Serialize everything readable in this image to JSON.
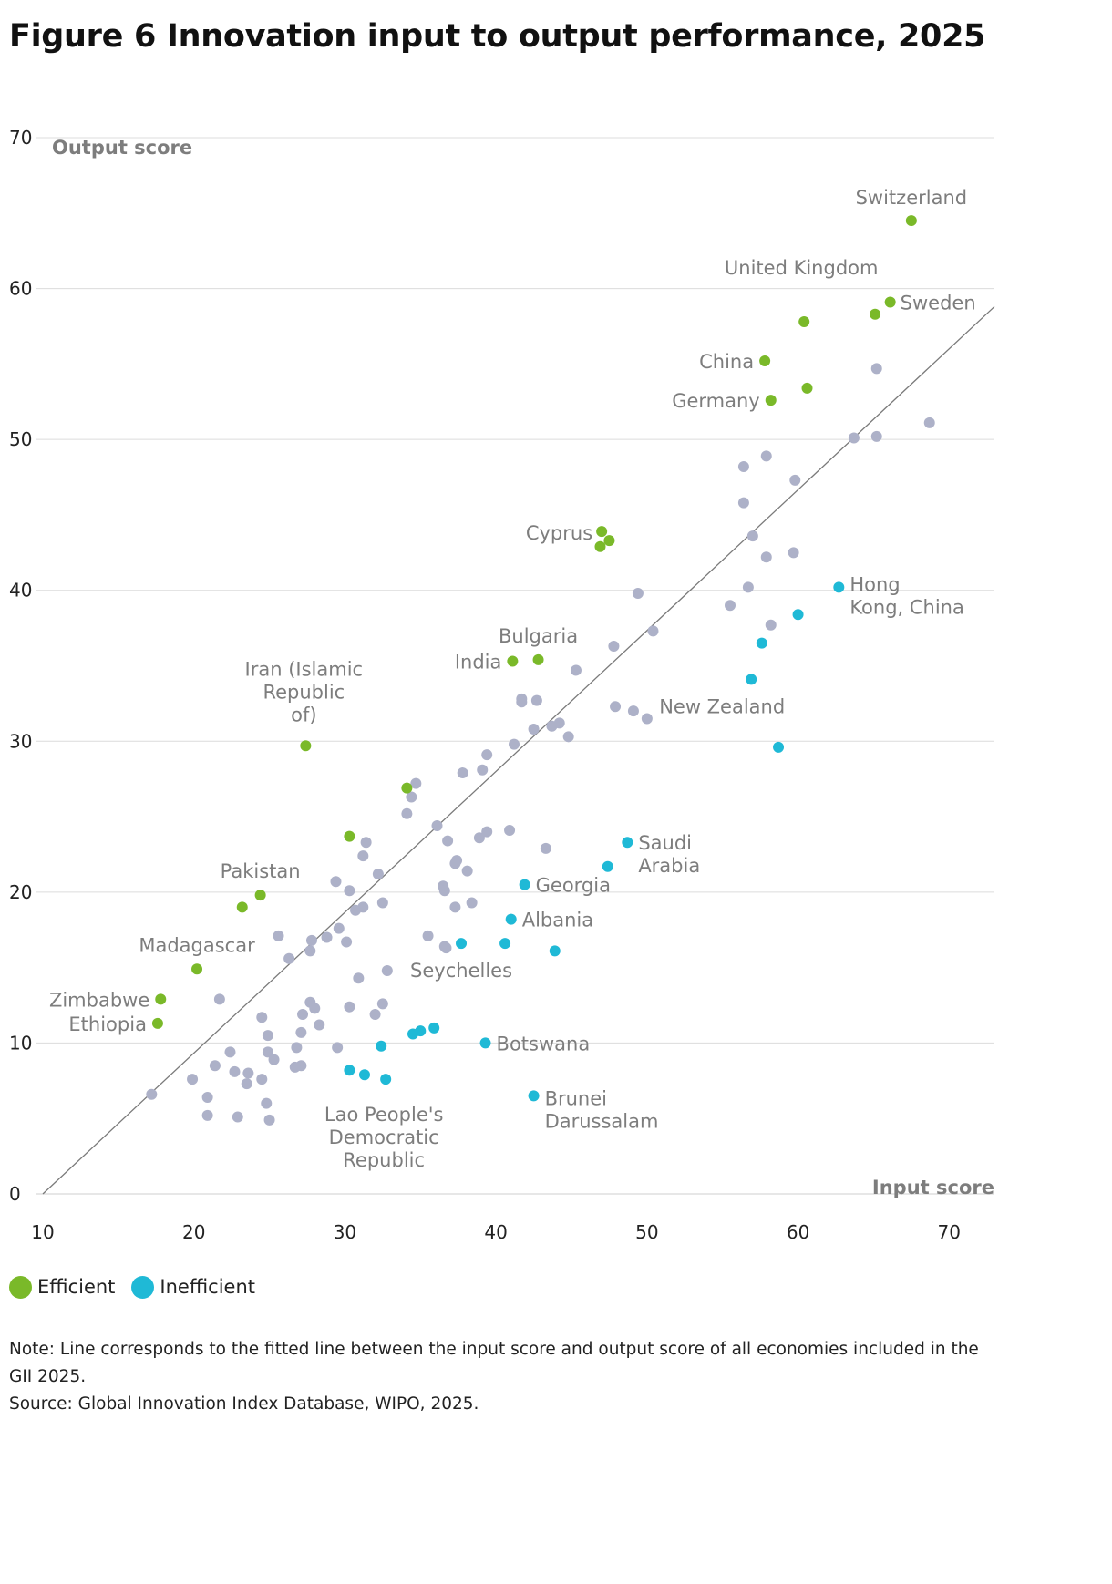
{
  "title": "Figure 6 Innovation input to output performance, 2025",
  "colors": {
    "efficient": "#7ab929",
    "inefficient": "#1fb9d6",
    "other": "#adb1c8",
    "fit_line": "#7a7a7a",
    "grid": "#dcdcdc"
  },
  "legend": [
    {
      "label": "Efficient",
      "color": "#7ab929"
    },
    {
      "label": "Inefficient",
      "color": "#1fb9d6"
    }
  ],
  "notes": {
    "note": "Note: Line corresponds to the fitted line between the input score and output score of all economies included in the GII 2025.",
    "source": "Source: Global Innovation Index Database, WIPO, 2025."
  },
  "chart_data": {
    "type": "scatter",
    "xlabel": "Input score",
    "ylabel": "Output score",
    "xlim": [
      10,
      73
    ],
    "ylim": [
      0,
      70
    ],
    "x_ticks": [
      "10",
      "20",
      "30",
      "40",
      "50",
      "60",
      "70"
    ],
    "y_ticks": [
      "0",
      "10",
      "20",
      "30",
      "40",
      "50",
      "60",
      "70"
    ],
    "grid": "horizontal",
    "legend_position": "bottom-left",
    "fitted_line": {
      "x": [
        10,
        73
      ],
      "y": [
        0,
        58.8
      ]
    },
    "series": [
      {
        "name": "Efficient",
        "color": "#7ab929",
        "points": [
          {
            "x": 67.5,
            "y": 64.5,
            "label": "Switzerland"
          },
          {
            "x": 66.1,
            "y": 59.1,
            "label": "Sweden"
          },
          {
            "x": 65.1,
            "y": 58.3
          },
          {
            "x": 60.4,
            "y": 57.8,
            "label": "United Kingdom"
          },
          {
            "x": 57.8,
            "y": 55.2,
            "label": "China"
          },
          {
            "x": 60.6,
            "y": 53.4
          },
          {
            "x": 58.2,
            "y": 52.6,
            "label": "Germany"
          },
          {
            "x": 47.0,
            "y": 43.9,
            "label": "Cyprus"
          },
          {
            "x": 47.5,
            "y": 43.3
          },
          {
            "x": 46.9,
            "y": 42.9
          },
          {
            "x": 42.8,
            "y": 35.4,
            "label": "Bulgaria"
          },
          {
            "x": 41.1,
            "y": 35.3,
            "label": "India"
          },
          {
            "x": 27.4,
            "y": 29.7,
            "label": "Iran (Islamic Republic of)"
          },
          {
            "x": 34.1,
            "y": 26.9
          },
          {
            "x": 30.3,
            "y": 23.7
          },
          {
            "x": 24.4,
            "y": 19.8,
            "label": "Pakistan"
          },
          {
            "x": 23.2,
            "y": 19.0
          },
          {
            "x": 20.2,
            "y": 14.9,
            "label": "Madagascar"
          },
          {
            "x": 17.8,
            "y": 12.9,
            "label": "Zimbabwe"
          },
          {
            "x": 17.6,
            "y": 11.3,
            "label": "Ethiopia"
          }
        ]
      },
      {
        "name": "Inefficient",
        "color": "#1fb9d6",
        "points": [
          {
            "x": 62.7,
            "y": 40.2,
            "label": "Hong Kong, China"
          },
          {
            "x": 60.0,
            "y": 38.4
          },
          {
            "x": 57.6,
            "y": 36.5
          },
          {
            "x": 56.9,
            "y": 34.1,
            "label": "New Zealand"
          },
          {
            "x": 58.7,
            "y": 29.6
          },
          {
            "x": 48.7,
            "y": 23.3,
            "label": "Saudi Arabia"
          },
          {
            "x": 47.4,
            "y": 21.7
          },
          {
            "x": 41.9,
            "y": 20.5,
            "label": "Georgia"
          },
          {
            "x": 41.0,
            "y": 18.2,
            "label": "Albania"
          },
          {
            "x": 43.9,
            "y": 16.1
          },
          {
            "x": 40.6,
            "y": 16.6
          },
          {
            "x": 37.7,
            "y": 16.6,
            "label": "Seychelles"
          },
          {
            "x": 35.9,
            "y": 11.0
          },
          {
            "x": 35.0,
            "y": 10.8
          },
          {
            "x": 34.5,
            "y": 10.6
          },
          {
            "x": 39.3,
            "y": 10.0,
            "label": "Botswana"
          },
          {
            "x": 32.4,
            "y": 9.8
          },
          {
            "x": 30.3,
            "y": 8.2
          },
          {
            "x": 31.3,
            "y": 7.9
          },
          {
            "x": 32.7,
            "y": 7.6,
            "label": "Lao People's Democratic Republic"
          },
          {
            "x": 42.5,
            "y": 6.5,
            "label": "Brunei Darussalam"
          }
        ]
      },
      {
        "name": "",
        "color": "#adb1c8",
        "points": [
          {
            "x": 68.7,
            "y": 51.1
          },
          {
            "x": 65.2,
            "y": 54.7
          },
          {
            "x": 63.7,
            "y": 50.1
          },
          {
            "x": 65.2,
            "y": 50.2
          },
          {
            "x": 56.4,
            "y": 48.2
          },
          {
            "x": 57.9,
            "y": 48.9
          },
          {
            "x": 59.8,
            "y": 47.3
          },
          {
            "x": 56.4,
            "y": 45.8
          },
          {
            "x": 57.0,
            "y": 43.6
          },
          {
            "x": 57.9,
            "y": 42.2
          },
          {
            "x": 59.7,
            "y": 42.5
          },
          {
            "x": 56.7,
            "y": 40.2
          },
          {
            "x": 55.5,
            "y": 39.0
          },
          {
            "x": 58.2,
            "y": 37.7
          },
          {
            "x": 49.4,
            "y": 39.8
          },
          {
            "x": 50.4,
            "y": 37.3
          },
          {
            "x": 47.8,
            "y": 36.3
          },
          {
            "x": 45.3,
            "y": 34.7
          },
          {
            "x": 41.7,
            "y": 32.8
          },
          {
            "x": 41.7,
            "y": 32.6
          },
          {
            "x": 42.7,
            "y": 32.7
          },
          {
            "x": 47.9,
            "y": 32.3
          },
          {
            "x": 49.1,
            "y": 32.0
          },
          {
            "x": 50.0,
            "y": 31.5
          },
          {
            "x": 44.2,
            "y": 31.2
          },
          {
            "x": 43.7,
            "y": 31.0
          },
          {
            "x": 42.5,
            "y": 30.8
          },
          {
            "x": 44.8,
            "y": 30.3
          },
          {
            "x": 41.2,
            "y": 29.8
          },
          {
            "x": 39.4,
            "y": 29.1
          },
          {
            "x": 39.1,
            "y": 28.1
          },
          {
            "x": 37.8,
            "y": 27.9
          },
          {
            "x": 34.7,
            "y": 27.2
          },
          {
            "x": 34.4,
            "y": 26.3
          },
          {
            "x": 34.1,
            "y": 25.2
          },
          {
            "x": 36.1,
            "y": 24.4
          },
          {
            "x": 39.4,
            "y": 24.0
          },
          {
            "x": 40.9,
            "y": 24.1
          },
          {
            "x": 38.9,
            "y": 23.6
          },
          {
            "x": 36.8,
            "y": 23.4
          },
          {
            "x": 31.4,
            "y": 23.3
          },
          {
            "x": 43.3,
            "y": 22.9
          },
          {
            "x": 31.2,
            "y": 22.4
          },
          {
            "x": 37.4,
            "y": 22.1
          },
          {
            "x": 37.3,
            "y": 21.9
          },
          {
            "x": 38.1,
            "y": 21.4
          },
          {
            "x": 32.2,
            "y": 21.2
          },
          {
            "x": 29.4,
            "y": 20.7
          },
          {
            "x": 36.5,
            "y": 20.4
          },
          {
            "x": 36.6,
            "y": 20.1
          },
          {
            "x": 30.3,
            "y": 20.1
          },
          {
            "x": 38.4,
            "y": 19.3
          },
          {
            "x": 32.5,
            "y": 19.3
          },
          {
            "x": 37.3,
            "y": 19.0
          },
          {
            "x": 31.2,
            "y": 19.0
          },
          {
            "x": 30.7,
            "y": 18.8
          },
          {
            "x": 29.6,
            "y": 17.6
          },
          {
            "x": 25.6,
            "y": 17.1
          },
          {
            "x": 27.8,
            "y": 16.8
          },
          {
            "x": 28.8,
            "y": 17.0
          },
          {
            "x": 35.5,
            "y": 17.1
          },
          {
            "x": 30.1,
            "y": 16.7
          },
          {
            "x": 36.6,
            "y": 16.4
          },
          {
            "x": 36.7,
            "y": 16.3
          },
          {
            "x": 27.7,
            "y": 16.1
          },
          {
            "x": 26.3,
            "y": 15.6
          },
          {
            "x": 32.8,
            "y": 14.8
          },
          {
            "x": 30.9,
            "y": 14.3
          },
          {
            "x": 21.7,
            "y": 12.9
          },
          {
            "x": 27.7,
            "y": 12.7
          },
          {
            "x": 32.5,
            "y": 12.6
          },
          {
            "x": 28.0,
            "y": 12.3
          },
          {
            "x": 30.3,
            "y": 12.4
          },
          {
            "x": 27.2,
            "y": 11.9
          },
          {
            "x": 32.0,
            "y": 11.9
          },
          {
            "x": 24.5,
            "y": 11.7
          },
          {
            "x": 28.3,
            "y": 11.2
          },
          {
            "x": 27.1,
            "y": 10.7
          },
          {
            "x": 24.9,
            "y": 10.5
          },
          {
            "x": 29.5,
            "y": 9.7
          },
          {
            "x": 26.8,
            "y": 9.7
          },
          {
            "x": 22.4,
            "y": 9.4
          },
          {
            "x": 24.9,
            "y": 9.4
          },
          {
            "x": 25.3,
            "y": 8.9
          },
          {
            "x": 21.4,
            "y": 8.5
          },
          {
            "x": 27.1,
            "y": 8.5
          },
          {
            "x": 26.7,
            "y": 8.4
          },
          {
            "x": 22.7,
            "y": 8.1
          },
          {
            "x": 23.6,
            "y": 8.0
          },
          {
            "x": 19.9,
            "y": 7.6
          },
          {
            "x": 24.5,
            "y": 7.6
          },
          {
            "x": 23.5,
            "y": 7.3
          },
          {
            "x": 17.2,
            "y": 6.6
          },
          {
            "x": 20.9,
            "y": 6.4
          },
          {
            "x": 24.8,
            "y": 6.0
          },
          {
            "x": 20.9,
            "y": 5.2
          },
          {
            "x": 22.9,
            "y": 5.1
          },
          {
            "x": 25.0,
            "y": 4.9
          }
        ]
      }
    ]
  }
}
